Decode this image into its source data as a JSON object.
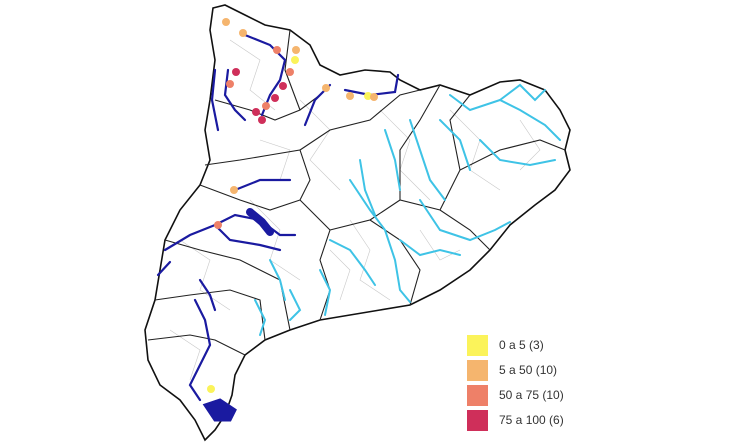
{
  "legend": {
    "items": [
      {
        "label": "0 a 5 (3)",
        "color": "#fbf35a"
      },
      {
        "label": "5 a 50 (10)",
        "color": "#f5b56e"
      },
      {
        "label": "50 a 75 (10)",
        "color": "#ee8068"
      },
      {
        "label": "75 a 100 (6)",
        "color": "#cf2f5a"
      }
    ]
  }
}
